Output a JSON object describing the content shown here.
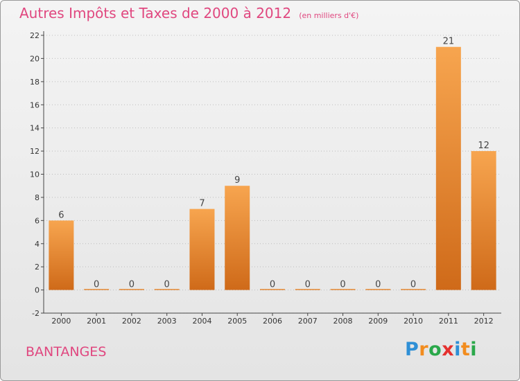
{
  "title": "Autres Impôts et Taxes de 2000 à 2012",
  "unit": "(en milliers d'€)",
  "commune": "BANTANGES",
  "logo": {
    "text": "Proxiti",
    "letters": [
      {
        "char": "P",
        "color": "#2e8fd6"
      },
      {
        "char": "r",
        "color": "#f28c1e"
      },
      {
        "char": "o",
        "color": "#2aa84a"
      },
      {
        "char": "x",
        "color": "#e5302e"
      },
      {
        "char": "i",
        "color": "#2e8fd6"
      },
      {
        "char": "t",
        "color": "#f28c1e"
      },
      {
        "char": "i",
        "color": "#2aa84a"
      }
    ]
  },
  "colors": {
    "title": "#e0477f",
    "bar_light": "#f7a54f",
    "bar_dark": "#cf6a19",
    "axis": "#444444",
    "grid": "#bdbdbd"
  },
  "chart_data": {
    "type": "bar",
    "categories": [
      "2000",
      "2001",
      "2002",
      "2003",
      "2004",
      "2005",
      "2006",
      "2007",
      "2008",
      "2009",
      "2010",
      "2011",
      "2012"
    ],
    "values": [
      6,
      0,
      0,
      0,
      7,
      9,
      0,
      0,
      0,
      0,
      0,
      21,
      12
    ],
    "data_labels": [
      "6",
      "0",
      "0",
      "0",
      "7",
      "9",
      "0",
      "0",
      "0",
      "0",
      "0",
      "21",
      "12"
    ],
    "y_ticks": [
      -2,
      0,
      2,
      4,
      6,
      8,
      10,
      12,
      14,
      16,
      18,
      20,
      22
    ],
    "ylim": [
      -2,
      22
    ],
    "grid": true,
    "legend": "none"
  }
}
